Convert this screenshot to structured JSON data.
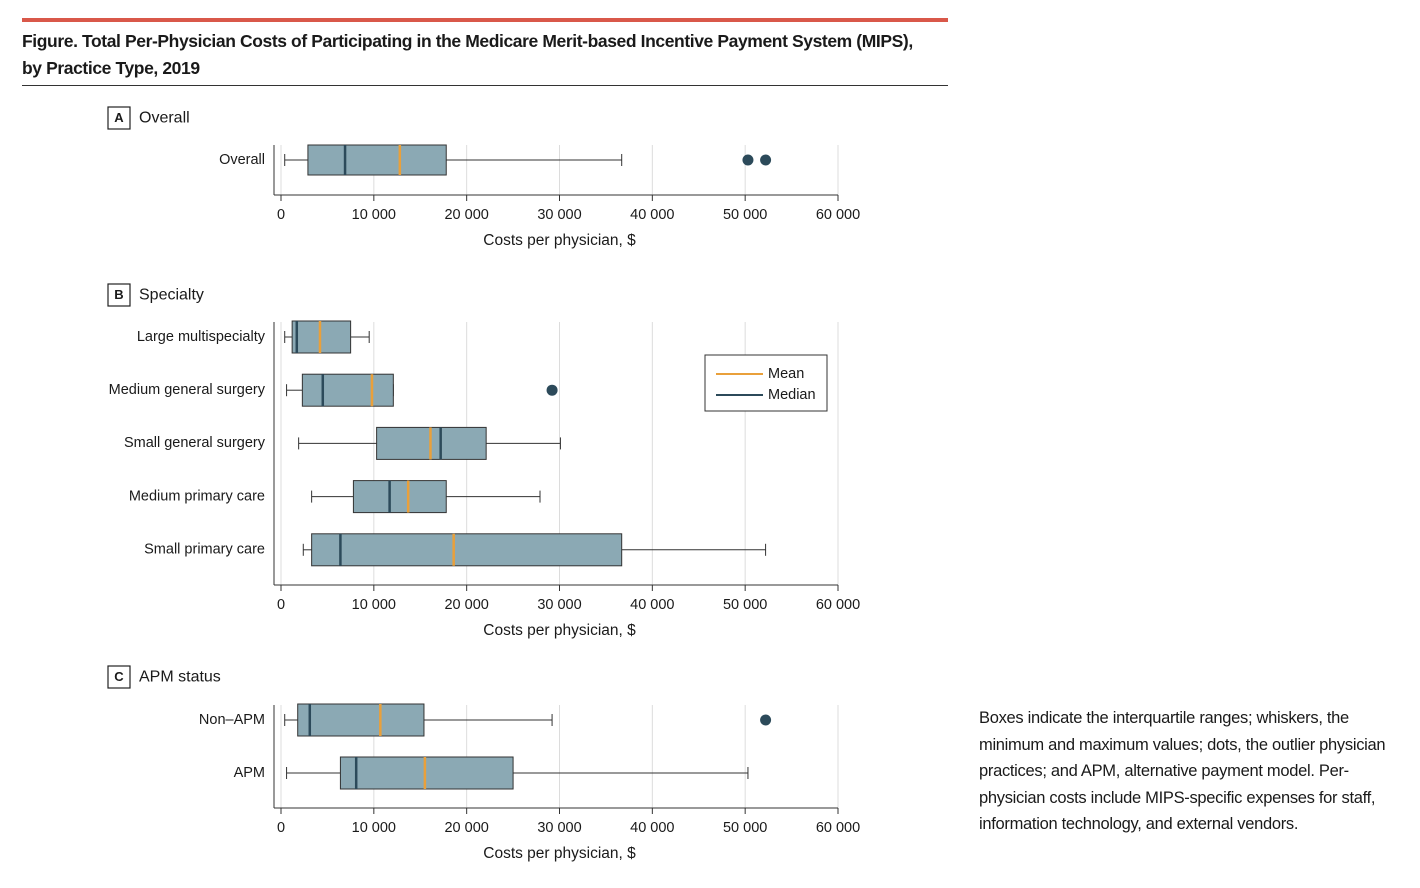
{
  "figure_title": "Figure. Total Per-Physician Costs of Participating in the Medicare Merit-based Incentive Payment System (MIPS), by Practice Type, 2019",
  "note": "Boxes indicate the interquartile ranges; whiskers, the minimum and maximum values; dots, the outlier physician practices; and APM, alternative payment model. Per-physician costs include MIPS-specific expenses for staff, information technology, and external vendors.",
  "chart_data": [
    {
      "type": "box",
      "panel": "A",
      "title": "Overall",
      "xlabel": "Costs per physician, $",
      "xlim": [
        0,
        60000
      ],
      "xticks": [
        0,
        {
          "value": 10000,
          "label": "10 000"
        },
        {
          "value": 20000,
          "label": "20 000"
        },
        {
          "value": 30000,
          "label": "30 000"
        },
        {
          "value": 40000,
          "label": "40 000"
        },
        {
          "value": 50000,
          "label": "50 000"
        },
        {
          "value": 60000,
          "label": "60 000"
        }
      ],
      "grid": true,
      "colors": {
        "box": "#8ba9b4",
        "mean": "#e9a03b",
        "median": "#2c4a5a",
        "outlier": "#2c4a5a"
      },
      "categories": [
        "Overall"
      ],
      "boxes": [
        {
          "min": 400,
          "q1": 2900,
          "median": 6900,
          "mean": 12800,
          "q3": 17800,
          "max": 36700,
          "outliers": [
            50300,
            52200
          ]
        }
      ]
    },
    {
      "type": "box",
      "panel": "B",
      "title": "Specialty",
      "xlabel": "Costs per physician, $",
      "xlim": [
        0,
        60000
      ],
      "xticks": [
        0,
        {
          "value": 10000,
          "label": "10 000"
        },
        {
          "value": 20000,
          "label": "20 000"
        },
        {
          "value": 30000,
          "label": "30 000"
        },
        {
          "value": 40000,
          "label": "40 000"
        },
        {
          "value": 50000,
          "label": "50 000"
        },
        {
          "value": 60000,
          "label": "60 000"
        }
      ],
      "grid": true,
      "colors": {
        "box": "#8ba9b4",
        "mean": "#e9a03b",
        "median": "#2c4a5a",
        "outlier": "#2c4a5a"
      },
      "legend": {
        "position": "upper right",
        "entries": [
          {
            "name": "Mean",
            "color": "#e9a03b"
          },
          {
            "name": "Median",
            "color": "#2c4a5a"
          }
        ]
      },
      "categories": [
        "Large multispecialty",
        "Medium general surgery",
        "Small general surgery",
        "Medium primary care",
        "Small primary care"
      ],
      "boxes": [
        {
          "min": 400,
          "q1": 1200,
          "median": 1700,
          "mean": 4200,
          "q3": 7500,
          "max": 9500
        },
        {
          "min": 600,
          "q1": 2300,
          "median": 4500,
          "mean": 9800,
          "q3": 12100,
          "max": 12100,
          "outliers": [
            29200
          ]
        },
        {
          "min": 1900,
          "q1": 10300,
          "median": 17200,
          "mean": 16100,
          "q3": 22100,
          "max": 30100
        },
        {
          "min": 3300,
          "q1": 7800,
          "median": 11700,
          "mean": 13700,
          "q3": 17800,
          "max": 27900
        },
        {
          "min": 2400,
          "q1": 3300,
          "median": 6400,
          "mean": 18600,
          "q3": 36700,
          "max": 52200
        }
      ]
    },
    {
      "type": "box",
      "panel": "C",
      "title": "APM status",
      "xlabel": "Costs per physician, $",
      "xlim": [
        0,
        60000
      ],
      "xticks": [
        0,
        {
          "value": 10000,
          "label": "10 000"
        },
        {
          "value": 20000,
          "label": "20 000"
        },
        {
          "value": 30000,
          "label": "30 000"
        },
        {
          "value": 40000,
          "label": "40 000"
        },
        {
          "value": 50000,
          "label": "50 000"
        },
        {
          "value": 60000,
          "label": "60 000"
        }
      ],
      "grid": true,
      "colors": {
        "box": "#8ba9b4",
        "mean": "#e9a03b",
        "median": "#2c4a5a",
        "outlier": "#2c4a5a"
      },
      "categories": [
        "Non–APM",
        "APM"
      ],
      "boxes": [
        {
          "min": 400,
          "q1": 1800,
          "median": 3100,
          "mean": 10700,
          "q3": 15400,
          "max": 29200,
          "outliers": [
            52200
          ]
        },
        {
          "min": 600,
          "q1": 6400,
          "median": 8100,
          "mean": 15500,
          "q3": 25000,
          "max": 50300
        }
      ]
    }
  ]
}
